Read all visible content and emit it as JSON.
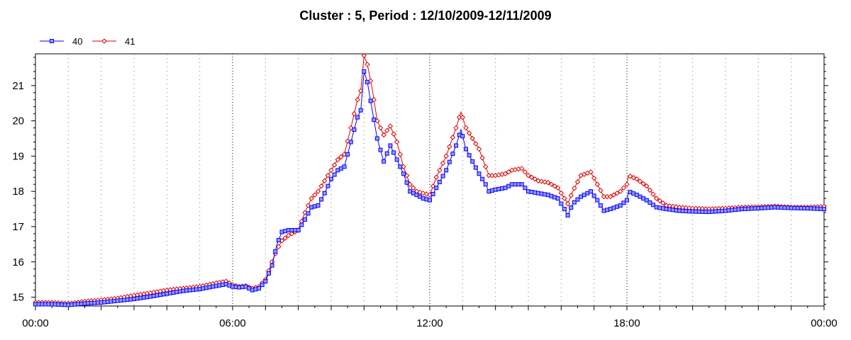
{
  "chart_data": {
    "type": "line",
    "title": "Cluster : 5, Period : 12/10/2009-12/11/2009",
    "xlabel": "",
    "ylabel": "",
    "x_ticks": [
      "00:00",
      "06:00",
      "12:00",
      "18:00",
      "00:00"
    ],
    "y_ticks": [
      "15",
      "16",
      "17",
      "18",
      "19",
      "20",
      "21"
    ],
    "xlim_hours": [
      0,
      24
    ],
    "ylim": [
      14.75,
      21.9
    ],
    "grid": true,
    "legend_position": "top-left",
    "series": [
      {
        "name": "40",
        "color": "#0000ff",
        "marker_fill": "#9999ff",
        "marker": "square",
        "points": [
          [
            0,
            14.8
          ],
          [
            0.5,
            14.8
          ],
          [
            1,
            14.78
          ],
          [
            1.5,
            14.82
          ],
          [
            2,
            14.85
          ],
          [
            2.5,
            14.9
          ],
          [
            3,
            14.95
          ],
          [
            3.5,
            15.02
          ],
          [
            4,
            15.1
          ],
          [
            4.5,
            15.18
          ],
          [
            5,
            15.23
          ],
          [
            5.5,
            15.32
          ],
          [
            5.8,
            15.37
          ],
          [
            6,
            15.3
          ],
          [
            6.2,
            15.28
          ],
          [
            6.4,
            15.3
          ],
          [
            6.6,
            15.2
          ],
          [
            6.8,
            15.25
          ],
          [
            7,
            15.45
          ],
          [
            7.2,
            15.9
          ],
          [
            7.35,
            16.5
          ],
          [
            7.5,
            16.85
          ],
          [
            7.7,
            16.9
          ],
          [
            8,
            16.9
          ],
          [
            8.2,
            17.2
          ],
          [
            8.4,
            17.55
          ],
          [
            8.6,
            17.6
          ],
          [
            8.8,
            17.95
          ],
          [
            9,
            18.35
          ],
          [
            9.2,
            18.6
          ],
          [
            9.4,
            18.7
          ],
          [
            9.6,
            19.4
          ],
          [
            9.8,
            20.1
          ],
          [
            9.9,
            20.3
          ],
          [
            10,
            21.4
          ],
          [
            10.1,
            21.1
          ],
          [
            10.25,
            20.3
          ],
          [
            10.4,
            19.5
          ],
          [
            10.6,
            18.85
          ],
          [
            10.8,
            19.3
          ],
          [
            11,
            18.9
          ],
          [
            11.2,
            18.5
          ],
          [
            11.4,
            18.0
          ],
          [
            11.6,
            17.9
          ],
          [
            11.8,
            17.8
          ],
          [
            12,
            17.75
          ],
          [
            12.2,
            18.1
          ],
          [
            12.5,
            18.6
          ],
          [
            12.8,
            19.3
          ],
          [
            12.95,
            19.75
          ],
          [
            13.1,
            19.2
          ],
          [
            13.3,
            18.85
          ],
          [
            13.5,
            18.5
          ],
          [
            13.7,
            18.2
          ],
          [
            13.8,
            18.0
          ],
          [
            14,
            18.05
          ],
          [
            14.3,
            18.1
          ],
          [
            14.5,
            18.2
          ],
          [
            14.8,
            18.2
          ],
          [
            15,
            18.0
          ],
          [
            15.3,
            17.95
          ],
          [
            15.6,
            17.9
          ],
          [
            15.9,
            17.8
          ],
          [
            16.1,
            17.5
          ],
          [
            16.2,
            17.32
          ],
          [
            16.35,
            17.65
          ],
          [
            16.6,
            17.85
          ],
          [
            16.9,
            18.0
          ],
          [
            17.1,
            17.75
          ],
          [
            17.3,
            17.45
          ],
          [
            17.5,
            17.5
          ],
          [
            17.8,
            17.6
          ],
          [
            18,
            17.75
          ],
          [
            18.05,
            18.0
          ],
          [
            18.3,
            17.9
          ],
          [
            18.6,
            17.75
          ],
          [
            18.9,
            17.55
          ],
          [
            19.2,
            17.5
          ],
          [
            19.6,
            17.45
          ],
          [
            20,
            17.43
          ],
          [
            20.5,
            17.42
          ],
          [
            21,
            17.45
          ],
          [
            21.5,
            17.5
          ],
          [
            22,
            17.52
          ],
          [
            22.5,
            17.55
          ],
          [
            23,
            17.53
          ],
          [
            23.5,
            17.52
          ],
          [
            24,
            17.5
          ]
        ]
      },
      {
        "name": "41",
        "color": "#dd0000",
        "marker_fill": "#ffffff",
        "marker": "diamond",
        "points": [
          [
            0,
            14.85
          ],
          [
            0.5,
            14.85
          ],
          [
            1,
            14.82
          ],
          [
            1.5,
            14.88
          ],
          [
            2,
            14.92
          ],
          [
            2.5,
            14.97
          ],
          [
            3,
            15.05
          ],
          [
            3.5,
            15.12
          ],
          [
            4,
            15.2
          ],
          [
            4.5,
            15.25
          ],
          [
            5,
            15.3
          ],
          [
            5.5,
            15.4
          ],
          [
            5.8,
            15.45
          ],
          [
            6,
            15.35
          ],
          [
            6.2,
            15.3
          ],
          [
            6.4,
            15.32
          ],
          [
            6.6,
            15.25
          ],
          [
            6.8,
            15.3
          ],
          [
            7,
            15.5
          ],
          [
            7.2,
            16.0
          ],
          [
            7.35,
            16.35
          ],
          [
            7.5,
            16.6
          ],
          [
            7.7,
            16.75
          ],
          [
            8,
            16.9
          ],
          [
            8.2,
            17.4
          ],
          [
            8.4,
            17.8
          ],
          [
            8.6,
            18.0
          ],
          [
            8.8,
            18.3
          ],
          [
            9,
            18.6
          ],
          [
            9.2,
            18.9
          ],
          [
            9.4,
            19.05
          ],
          [
            9.6,
            19.8
          ],
          [
            9.8,
            20.6
          ],
          [
            9.9,
            20.85
          ],
          [
            10,
            21.85
          ],
          [
            10.1,
            21.6
          ],
          [
            10.25,
            20.9
          ],
          [
            10.4,
            20.0
          ],
          [
            10.6,
            19.6
          ],
          [
            10.8,
            19.85
          ],
          [
            11,
            19.4
          ],
          [
            11.2,
            18.7
          ],
          [
            11.4,
            18.2
          ],
          [
            11.6,
            18.0
          ],
          [
            11.8,
            17.95
          ],
          [
            12,
            17.9
          ],
          [
            12.2,
            18.4
          ],
          [
            12.5,
            19.0
          ],
          [
            12.8,
            19.8
          ],
          [
            12.95,
            20.25
          ],
          [
            13.1,
            19.8
          ],
          [
            13.3,
            19.5
          ],
          [
            13.5,
            19.2
          ],
          [
            13.7,
            18.7
          ],
          [
            13.8,
            18.45
          ],
          [
            14,
            18.45
          ],
          [
            14.3,
            18.5
          ],
          [
            14.5,
            18.6
          ],
          [
            14.8,
            18.65
          ],
          [
            15,
            18.45
          ],
          [
            15.3,
            18.3
          ],
          [
            15.6,
            18.25
          ],
          [
            15.9,
            18.1
          ],
          [
            16.1,
            17.8
          ],
          [
            16.2,
            17.65
          ],
          [
            16.35,
            18.0
          ],
          [
            16.6,
            18.45
          ],
          [
            16.9,
            18.55
          ],
          [
            17.1,
            18.2
          ],
          [
            17.3,
            17.85
          ],
          [
            17.5,
            17.85
          ],
          [
            17.8,
            18.0
          ],
          [
            18,
            18.2
          ],
          [
            18.05,
            18.45
          ],
          [
            18.3,
            18.35
          ],
          [
            18.6,
            18.15
          ],
          [
            18.9,
            17.8
          ],
          [
            19.2,
            17.6
          ],
          [
            19.6,
            17.55
          ],
          [
            20,
            17.52
          ],
          [
            20.5,
            17.5
          ],
          [
            21,
            17.52
          ],
          [
            21.5,
            17.55
          ],
          [
            22,
            17.56
          ],
          [
            22.5,
            17.58
          ],
          [
            23,
            17.55
          ],
          [
            23.5,
            17.55
          ],
          [
            24,
            17.57
          ]
        ]
      }
    ]
  }
}
